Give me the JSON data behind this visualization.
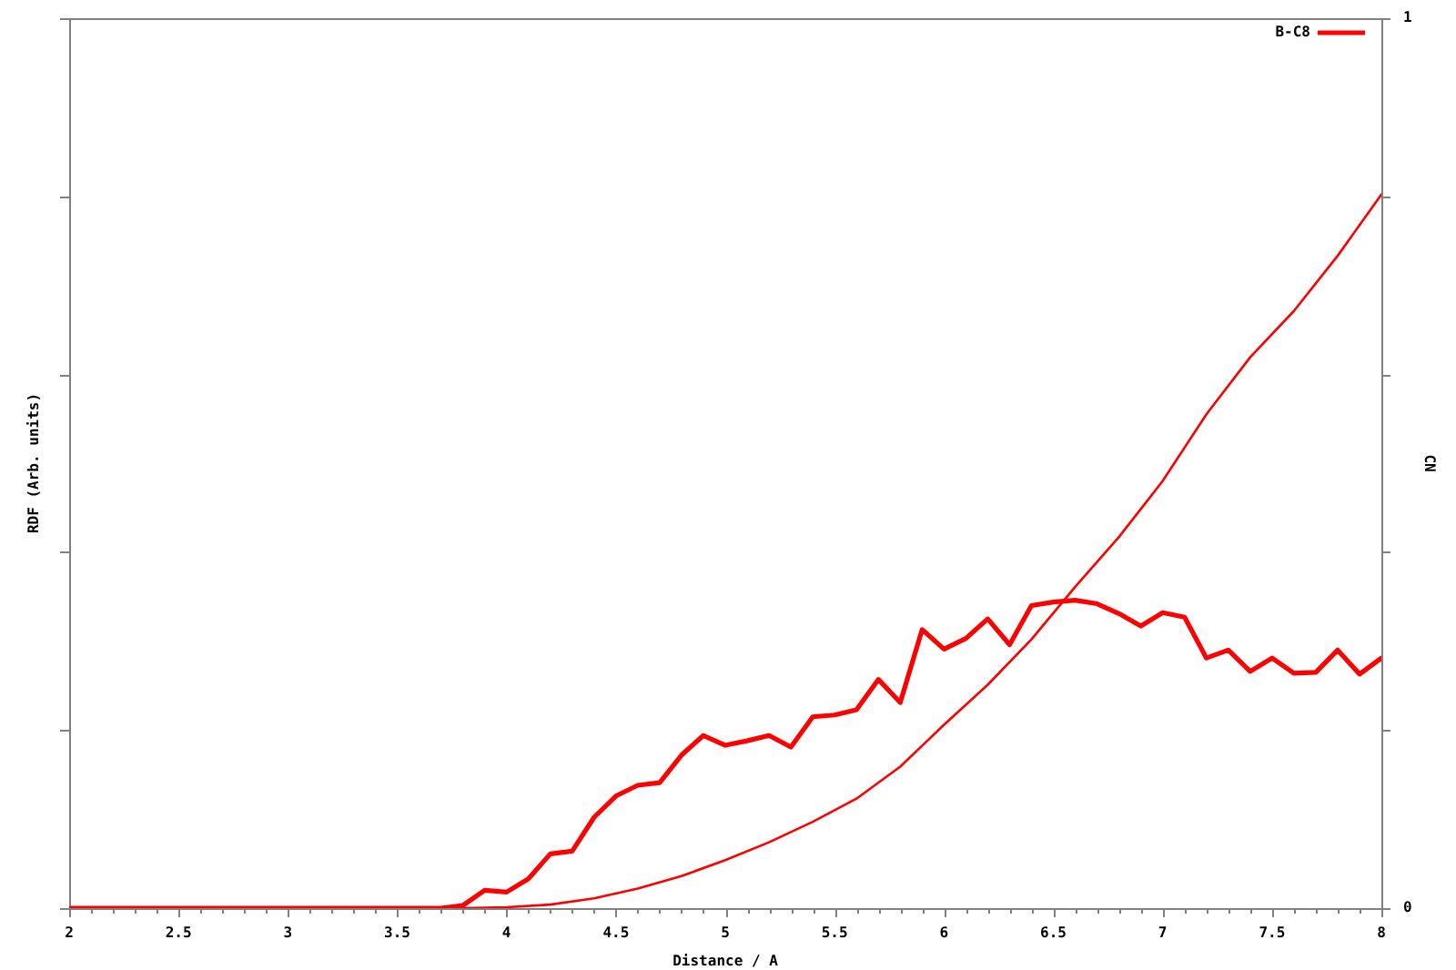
{
  "chart_data": {
    "type": "line",
    "xlabel": "Distance / A",
    "ylabel": "RDF (Arb. units)",
    "y2label": "CN",
    "x": [
      2,
      2.1,
      2.2,
      2.3,
      2.4,
      2.5,
      2.6,
      2.7,
      2.8,
      2.9,
      3,
      3.1,
      3.2,
      3.3,
      3.4,
      3.5,
      3.6,
      3.7,
      3.8,
      3.9,
      4,
      4.1,
      4.2,
      4.3,
      4.4,
      4.5,
      4.6,
      4.7,
      4.8,
      4.9,
      5,
      5.1,
      5.2,
      5.3,
      5.4,
      5.5,
      5.6,
      5.7,
      5.8,
      5.9,
      6,
      6.1,
      6.2,
      6.3,
      6.4,
      6.5,
      6.6,
      6.7,
      6.8,
      6.9,
      7,
      7.1,
      7.2,
      7.3,
      7.4,
      7.5,
      7.6,
      7.7,
      7.8,
      7.9,
      8
    ],
    "series": [
      {
        "name": "B-C8",
        "color": "#ff0000",
        "axis": "y2",
        "values": [
          0,
          0,
          0,
          0,
          0,
          0,
          0,
          0,
          0,
          0,
          0,
          0,
          0,
          0,
          0,
          0,
          0,
          0,
          0.003,
          0.02,
          0.018,
          0.033,
          0.061,
          0.064,
          0.102,
          0.126,
          0.138,
          0.141,
          0.172,
          0.194,
          0.183,
          0.188,
          0.194,
          0.181,
          0.215,
          0.217,
          0.223,
          0.257,
          0.231,
          0.313,
          0.291,
          0.303,
          0.325,
          0.296,
          0.34,
          0.344,
          0.346,
          0.342,
          0.331,
          0.317,
          0.332,
          0.327,
          0.281,
          0.29,
          0.266,
          0.281,
          0.264,
          0.265,
          0.29,
          0.263,
          0.281
        ]
      },
      {
        "color": "#ff0000",
        "axis": "y2",
        "x": [
          2,
          3.8,
          4,
          4.2,
          4.4,
          4.6,
          4.8,
          5,
          5.2,
          5.4,
          5.6,
          5.8,
          6,
          6.2,
          6.4,
          6.6,
          6.8,
          7,
          7.2,
          7.4,
          7.6,
          7.8,
          8
        ],
        "values": [
          0,
          0,
          0.001,
          0.004,
          0.011,
          0.022,
          0.036,
          0.054,
          0.074,
          0.097,
          0.123,
          0.159,
          0.206,
          0.251,
          0.302,
          0.361,
          0.417,
          0.48,
          0.555,
          0.619,
          0.671,
          0.733,
          0.802
        ]
      }
    ],
    "xlim": [
      2,
      8
    ],
    "xticks": [
      2,
      {
        "value": 2.1,
        "label": null
      },
      {
        "value": 2.2,
        "label": null
      },
      {
        "value": 2.3,
        "label": null
      },
      {
        "value": 2.4,
        "label": null
      },
      2.5,
      {
        "value": 2.6,
        "label": null
      },
      {
        "value": 2.7,
        "label": null
      },
      {
        "value": 2.8,
        "label": null
      },
      {
        "value": 2.9,
        "label": null
      },
      3,
      {
        "value": 3.1,
        "label": null
      },
      {
        "value": 3.2,
        "label": null
      },
      {
        "value": 3.3,
        "label": null
      },
      {
        "value": 3.4,
        "label": null
      },
      3.5,
      {
        "value": 3.6,
        "label": null
      },
      {
        "value": 3.7,
        "label": null
      },
      {
        "value": 3.8,
        "label": null
      },
      {
        "value": 3.9,
        "label": null
      },
      4,
      {
        "value": 4.1,
        "label": null
      },
      {
        "value": 4.2,
        "label": null
      },
      {
        "value": 4.3,
        "label": null
      },
      {
        "value": 4.4,
        "label": null
      },
      4.5,
      {
        "value": 4.6,
        "label": null
      },
      {
        "value": 4.7,
        "label": null
      },
      {
        "value": 4.8,
        "label": null
      },
      {
        "value": 4.9,
        "label": null
      },
      5,
      {
        "value": 5.1,
        "label": null
      },
      {
        "value": 5.2,
        "label": null
      },
      {
        "value": 5.3,
        "label": null
      },
      {
        "value": 5.4,
        "label": null
      },
      5.5,
      {
        "value": 5.6,
        "label": null
      },
      {
        "value": 5.7,
        "label": null
      },
      {
        "value": 5.8,
        "label": null
      },
      {
        "value": 5.9,
        "label": null
      },
      6,
      {
        "value": 6.1,
        "label": null
      },
      {
        "value": 6.2,
        "label": null
      },
      {
        "value": 6.3,
        "label": null
      },
      {
        "value": 6.4,
        "label": null
      },
      6.5,
      {
        "value": 6.6,
        "label": null
      },
      {
        "value": 6.7,
        "label": null
      },
      {
        "value": 6.8,
        "label": null
      },
      {
        "value": 6.9,
        "label": null
      },
      7,
      {
        "value": 7.1,
        "label": null
      },
      {
        "value": 7.2,
        "label": null
      },
      {
        "value": 7.3,
        "label": null
      },
      {
        "value": 7.4,
        "label": null
      },
      7.5,
      {
        "value": 7.6,
        "label": null
      },
      {
        "value": 7.7,
        "label": null
      },
      {
        "value": 7.8,
        "label": null
      },
      {
        "value": 7.9,
        "label": null
      },
      8
    ],
    "y2lim": [
      0,
      1
    ],
    "y2ticks": [
      0,
      {
        "value": 0.2,
        "label": null
      },
      {
        "value": 0.4,
        "label": null
      },
      {
        "value": 0.6,
        "label": null
      },
      {
        "value": 0.8,
        "label": null
      },
      1
    ],
    "legend": "top right"
  }
}
